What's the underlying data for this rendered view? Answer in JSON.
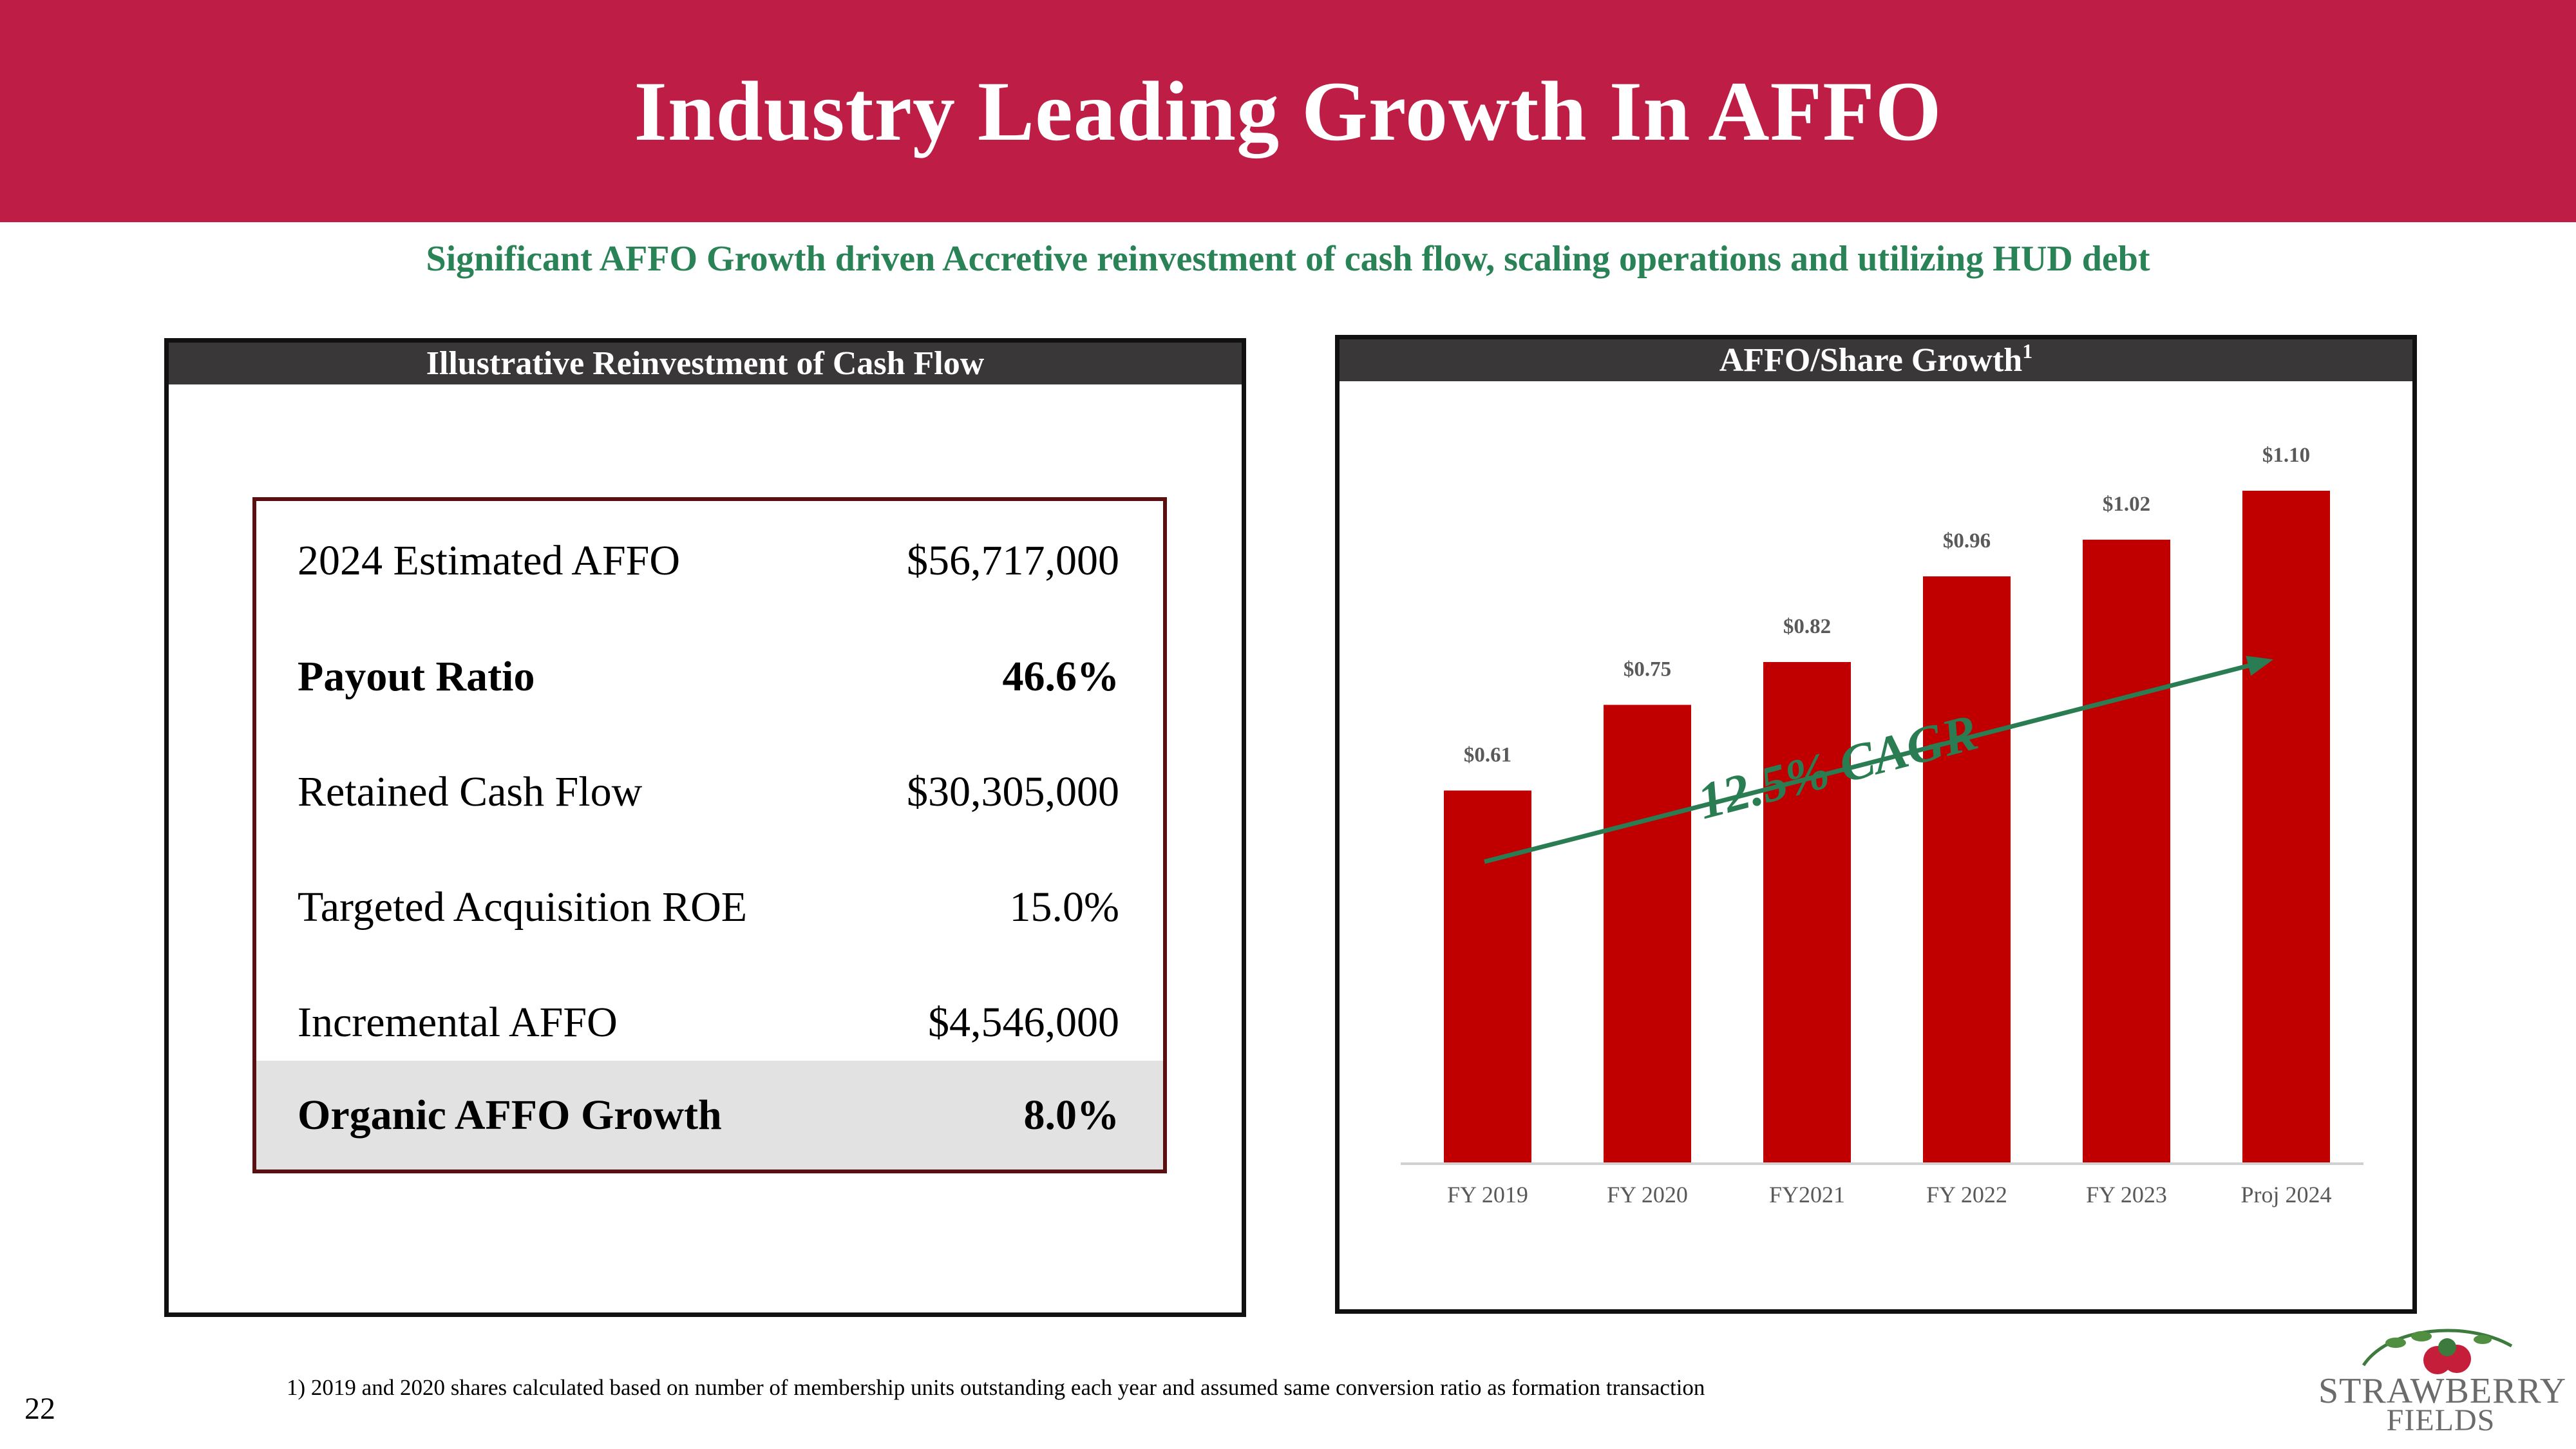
{
  "slide": {
    "title": "Industry Leading Growth In AFFO",
    "subtitle": "Significant AFFO Growth driven Accretive reinvestment of cash flow, scaling operations and utilizing HUD debt",
    "page_number": "22",
    "footnote": "1) 2019 and 2020 shares calculated based on number of membership units outstanding each year and assumed same conversion ratio as formation transaction"
  },
  "left_panel": {
    "title": "Illustrative Reinvestment of Cash Flow",
    "rows": [
      {
        "label": "2024 Estimated AFFO",
        "value": "$56,717,000"
      },
      {
        "label": "Payout Ratio",
        "value": "46.6%"
      },
      {
        "label": "Retained Cash Flow",
        "value": "$30,305,000"
      },
      {
        "label": "Targeted Acquisition ROE",
        "value": "15.0%"
      },
      {
        "label": "Incremental AFFO",
        "value": "$4,546,000"
      },
      {
        "label": "Organic AFFO Growth",
        "value": "8.0%"
      }
    ]
  },
  "right_panel": {
    "title": "AFFO/Share Growth",
    "title_superscript": "1"
  },
  "chart_data": {
    "type": "bar",
    "title": "AFFO/Share Growth",
    "categories": [
      "FY 2019",
      "FY 2020",
      "FY2021",
      "FY 2022",
      "FY 2023",
      "Proj 2024"
    ],
    "values": [
      0.61,
      0.75,
      0.82,
      0.96,
      1.02,
      1.1
    ],
    "data_labels": [
      "$0.61",
      "$0.75",
      "$0.82",
      "$0.96",
      "$1.02",
      "$1.10"
    ],
    "annotation": "12.5% CAGR",
    "ylim": [
      0,
      1.2
    ],
    "xlabel": "",
    "ylabel": "",
    "bar_color": "#c00000",
    "arrow_color": "#2a7d52"
  },
  "logo": {
    "line1": "STRAWBERRY",
    "line2": "FIELDS"
  },
  "colors": {
    "header_band": "#be1e45",
    "subtitle": "#2a8257",
    "panel_header": "#3a3738"
  }
}
